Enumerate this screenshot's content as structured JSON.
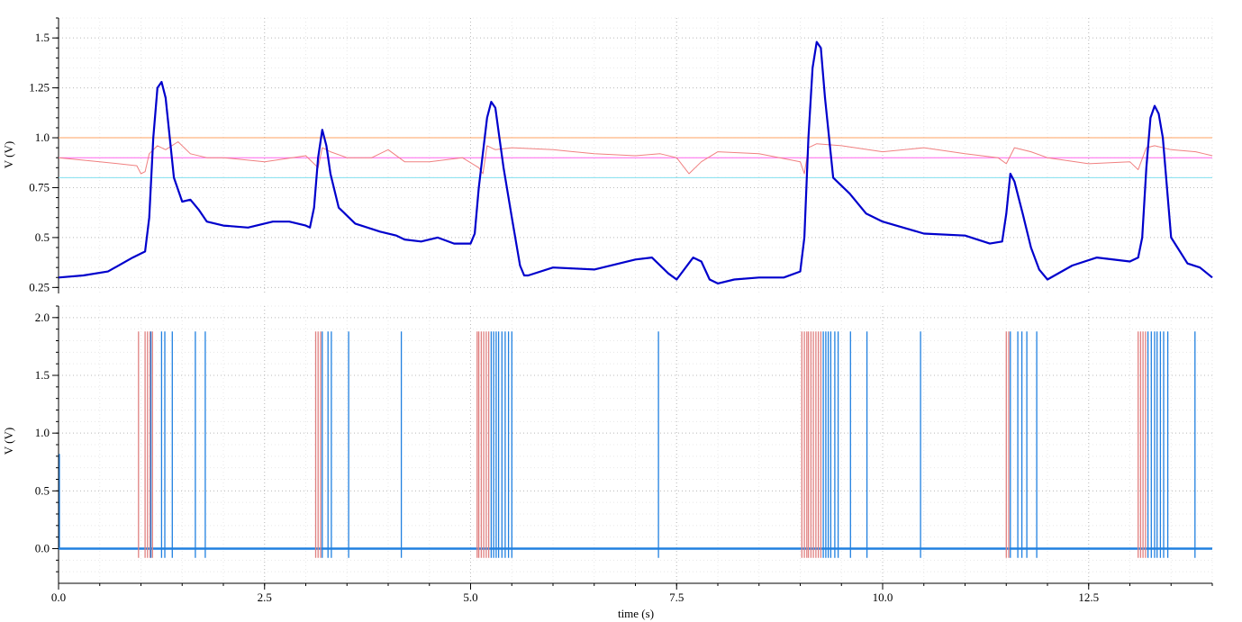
{
  "chart_data": [
    {
      "type": "line",
      "ylabel": "V (V)",
      "xlim": [
        0,
        14
      ],
      "ylim": [
        0.22,
        1.6
      ],
      "yticks": [
        0.25,
        0.5,
        0.75,
        1.0,
        1.25,
        1.5
      ],
      "ytick_labels": [
        "0.25",
        "0.5",
        "0.75",
        "1.0",
        "1.25",
        "1.5"
      ],
      "grid": true,
      "series": [
        {
          "color": "#0000cc",
          "x": [
            0,
            0.3,
            0.6,
            0.9,
            1.05,
            1.1,
            1.15,
            1.2,
            1.25,
            1.3,
            1.4,
            1.5,
            1.6,
            1.7,
            1.8,
            2.0,
            2.3,
            2.6,
            2.8,
            3.0,
            3.05,
            3.1,
            3.15,
            3.2,
            3.25,
            3.3,
            3.4,
            3.6,
            3.9,
            4.1,
            4.2,
            4.4,
            4.6,
            4.8,
            5.0,
            5.05,
            5.1,
            5.2,
            5.25,
            5.3,
            5.35,
            5.4,
            5.5,
            5.6,
            5.65,
            5.7,
            6.0,
            6.5,
            7.0,
            7.2,
            7.4,
            7.5,
            7.7,
            7.8,
            7.9,
            8.0,
            8.2,
            8.5,
            8.8,
            9.0,
            9.05,
            9.1,
            9.15,
            9.2,
            9.25,
            9.3,
            9.4,
            9.6,
            9.8,
            10.0,
            10.5,
            11.0,
            11.3,
            11.45,
            11.5,
            11.55,
            11.6,
            11.7,
            11.8,
            11.9,
            12.0,
            12.3,
            12.6,
            13.0,
            13.1,
            13.15,
            13.2,
            13.25,
            13.3,
            13.35,
            13.4,
            13.5,
            13.7,
            13.85,
            14.0
          ],
          "y": [
            0.3,
            0.31,
            0.33,
            0.4,
            0.43,
            0.6,
            1.0,
            1.25,
            1.28,
            1.2,
            0.8,
            0.68,
            0.69,
            0.64,
            0.58,
            0.56,
            0.55,
            0.58,
            0.58,
            0.56,
            0.55,
            0.65,
            0.9,
            1.04,
            0.96,
            0.82,
            0.65,
            0.57,
            0.53,
            0.51,
            0.49,
            0.48,
            0.5,
            0.47,
            0.47,
            0.52,
            0.75,
            1.1,
            1.18,
            1.15,
            1.0,
            0.85,
            0.6,
            0.36,
            0.31,
            0.31,
            0.35,
            0.34,
            0.39,
            0.4,
            0.32,
            0.29,
            0.4,
            0.38,
            0.29,
            0.27,
            0.29,
            0.3,
            0.3,
            0.33,
            0.5,
            1.0,
            1.35,
            1.48,
            1.45,
            1.2,
            0.8,
            0.72,
            0.62,
            0.58,
            0.52,
            0.51,
            0.47,
            0.48,
            0.62,
            0.82,
            0.78,
            0.62,
            0.45,
            0.34,
            0.29,
            0.36,
            0.4,
            0.38,
            0.4,
            0.5,
            0.85,
            1.1,
            1.16,
            1.12,
            1.0,
            0.5,
            0.37,
            0.35,
            0.3
          ]
        },
        {
          "color": "#f08080",
          "x": [
            0,
            0.5,
            0.95,
            1.0,
            1.05,
            1.1,
            1.2,
            1.3,
            1.45,
            1.6,
            1.8,
            2.0,
            2.5,
            3.0,
            3.15,
            3.2,
            3.3,
            3.5,
            3.8,
            4.0,
            4.2,
            4.5,
            4.9,
            5.1,
            5.15,
            5.2,
            5.3,
            5.5,
            6.0,
            6.5,
            7.0,
            7.3,
            7.5,
            7.65,
            7.8,
            8.0,
            8.5,
            9.0,
            9.05,
            9.1,
            9.2,
            9.5,
            10.0,
            10.5,
            11.0,
            11.4,
            11.5,
            11.6,
            11.8,
            12.0,
            12.5,
            13.0,
            13.1,
            13.2,
            13.3,
            13.5,
            13.8,
            13.9,
            14.0
          ],
          "y": [
            0.9,
            0.88,
            0.86,
            0.82,
            0.83,
            0.92,
            0.96,
            0.94,
            0.98,
            0.92,
            0.9,
            0.9,
            0.88,
            0.91,
            0.85,
            0.95,
            0.93,
            0.9,
            0.9,
            0.94,
            0.88,
            0.88,
            0.9,
            0.85,
            0.82,
            0.96,
            0.94,
            0.95,
            0.94,
            0.92,
            0.91,
            0.92,
            0.9,
            0.82,
            0.88,
            0.93,
            0.92,
            0.88,
            0.82,
            0.95,
            0.97,
            0.96,
            0.93,
            0.95,
            0.92,
            0.9,
            0.87,
            0.95,
            0.93,
            0.9,
            0.87,
            0.88,
            0.84,
            0.95,
            0.96,
            0.94,
            0.93,
            0.92,
            0.91
          ]
        },
        {
          "color": "#ffa060",
          "x": [
            0,
            14
          ],
          "y": [
            1.0,
            1.0
          ]
        },
        {
          "color": "#ff66ee",
          "x": [
            0,
            14
          ],
          "y": [
            0.9,
            0.9
          ]
        },
        {
          "color": "#80e0f0",
          "x": [
            0,
            14
          ],
          "y": [
            0.8,
            0.8
          ]
        }
      ]
    },
    {
      "type": "line",
      "xlabel": "time (s)",
      "ylabel": "V (V)",
      "xlim": [
        0,
        14
      ],
      "ylim": [
        -0.3,
        2.1
      ],
      "xticks": [
        0.0,
        2.5,
        5.0,
        7.5,
        10.0,
        12.5
      ],
      "xtick_labels": [
        "0.0",
        "2.5",
        "5.0",
        "7.5",
        "10.0",
        "12.5"
      ],
      "yticks": [
        0.0,
        0.5,
        1.0,
        1.5,
        2.0
      ],
      "ytick_labels": [
        "0.0",
        "0.5",
        "1.0",
        "1.5",
        "2.0"
      ],
      "grid": true,
      "baseline": 0.0,
      "spike_top": 1.88,
      "spike_bottom": -0.08,
      "initial_spike": 0.82,
      "series": [
        {
          "color": "#e08080",
          "spikes": [
            0.97,
            1.05,
            1.08,
            1.11,
            1.14,
            3.12,
            3.15,
            3.18,
            5.08,
            5.1,
            5.13,
            5.16,
            5.19,
            5.22,
            9.02,
            9.05,
            9.08,
            9.1,
            9.13,
            9.16,
            9.19,
            9.22,
            9.25,
            11.5,
            11.53,
            13.1,
            13.13,
            13.16,
            13.19
          ]
        },
        {
          "color": "#2080e0",
          "spikes": [
            1.12,
            1.25,
            1.29,
            1.38,
            1.66,
            1.78,
            3.2,
            3.27,
            3.31,
            3.52,
            4.16,
            5.25,
            5.28,
            5.31,
            5.34,
            5.38,
            5.42,
            5.46,
            5.5,
            7.28,
            9.28,
            9.31,
            9.34,
            9.37,
            9.42,
            9.46,
            9.61,
            9.81,
            10.46,
            11.55,
            11.64,
            11.69,
            11.75,
            11.87,
            13.22,
            13.26,
            13.3,
            13.33,
            13.37,
            13.41,
            13.46,
            13.79
          ]
        }
      ]
    }
  ]
}
